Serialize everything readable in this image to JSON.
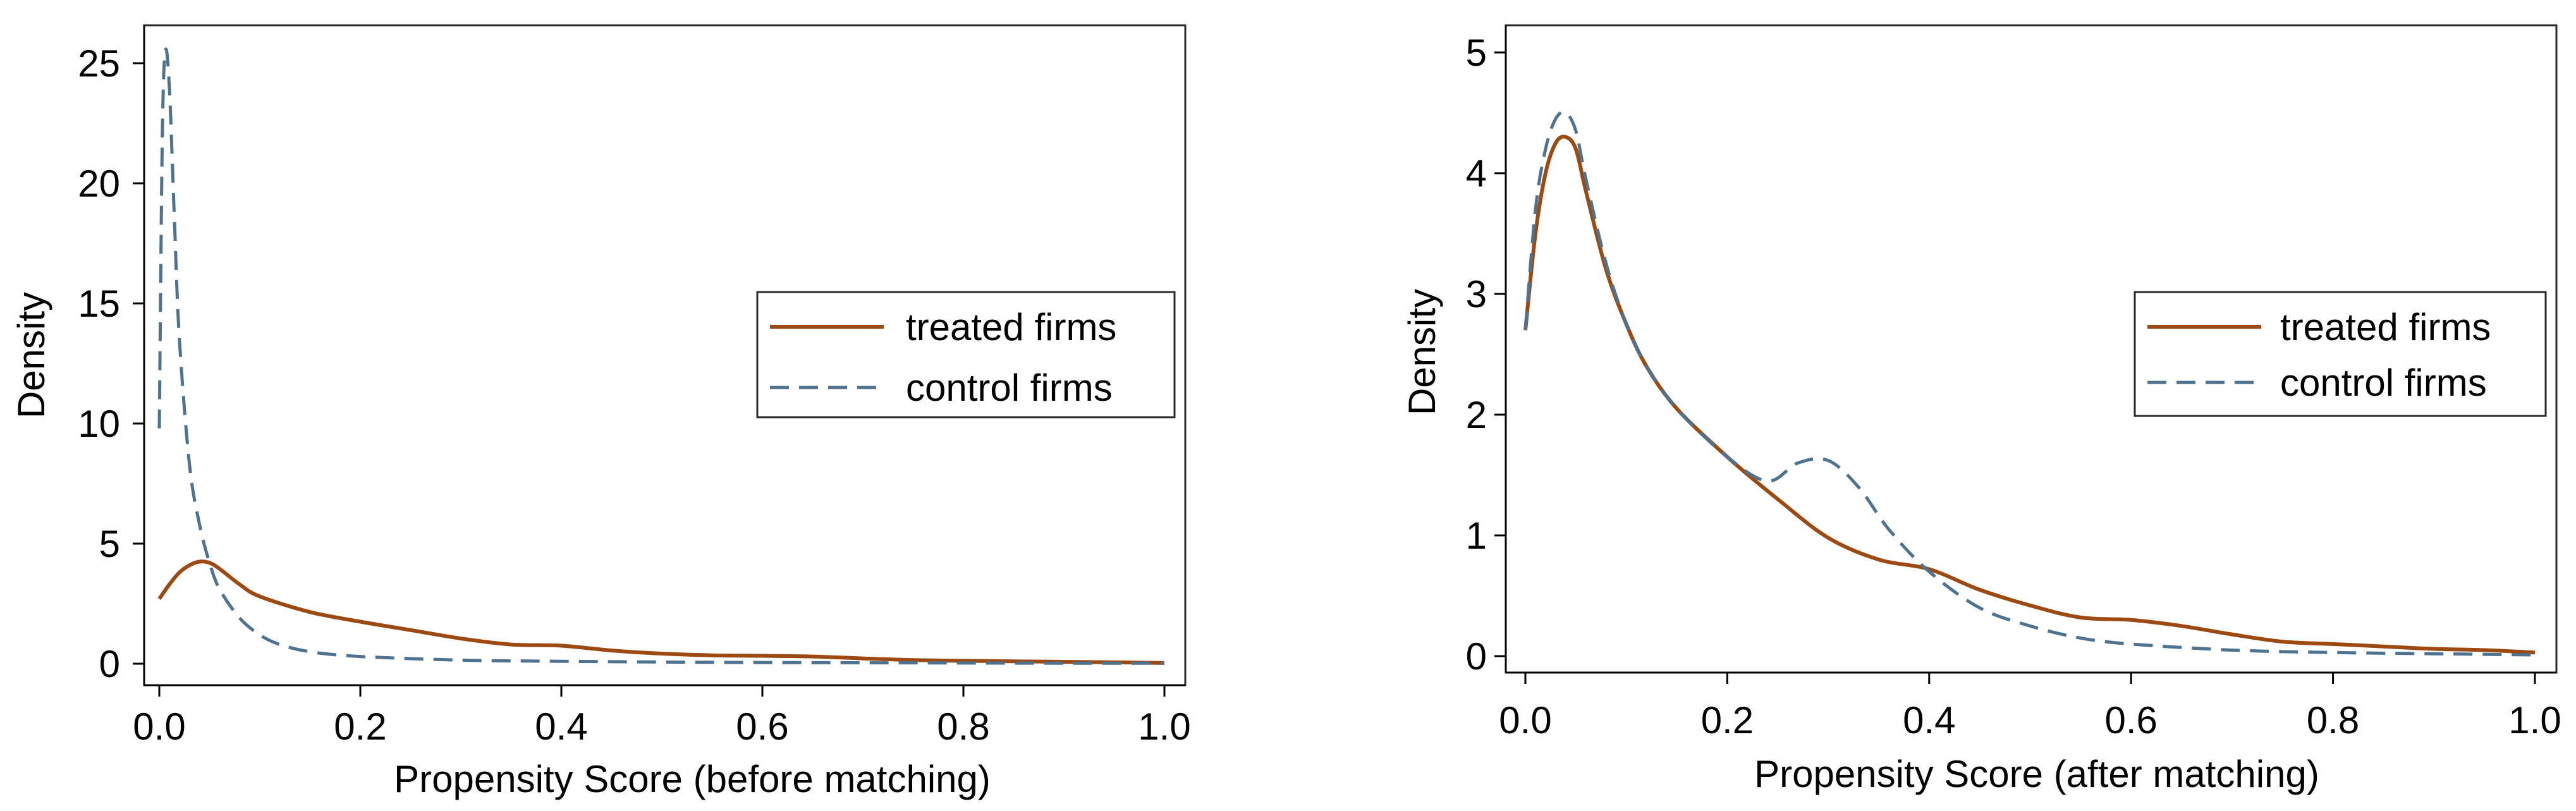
{
  "colors": {
    "treated": "#9c4a11",
    "control": "#4d7391",
    "frame": "#2b2b2b",
    "axis": "#000000"
  },
  "chart_data": [
    {
      "type": "line",
      "title": "",
      "xlabel": "Propensity Score (before matching)",
      "ylabel": "Density",
      "xlim": [
        0,
        1
      ],
      "ylim": [
        0,
        26
      ],
      "xticks": [
        0,
        0.2,
        0.4,
        0.6,
        0.8,
        1
      ],
      "xtick_labels": [
        "0.0",
        "0.2",
        "0.4",
        "0.6",
        "0.8",
        "1.0"
      ],
      "yticks": [
        0,
        5,
        10,
        15,
        20,
        25
      ],
      "ytick_labels": [
        "0",
        "5",
        "10",
        "15",
        "20",
        "25"
      ],
      "grid": false,
      "legend": {
        "position": "right",
        "entries": [
          "treated firms",
          "control firms"
        ]
      },
      "series": [
        {
          "name": "treated firms",
          "style": "solid",
          "x": [
            0,
            0.01,
            0.02,
            0.03,
            0.04,
            0.05,
            0.06,
            0.08,
            0.1,
            0.15,
            0.2,
            0.25,
            0.3,
            0.35,
            0.4,
            0.45,
            0.5,
            0.55,
            0.6,
            0.65,
            0.7,
            0.75,
            0.8,
            0.85,
            0.9,
            0.95,
            1.0
          ],
          "y": [
            2.7,
            3.3,
            3.8,
            4.1,
            4.25,
            4.2,
            3.95,
            3.3,
            2.8,
            2.15,
            1.75,
            1.4,
            1.05,
            0.8,
            0.75,
            0.55,
            0.42,
            0.35,
            0.33,
            0.3,
            0.22,
            0.15,
            0.12,
            0.1,
            0.08,
            0.06,
            0.03
          ]
        },
        {
          "name": "control firms",
          "style": "dashed",
          "x": [
            0,
            0.003,
            0.006,
            0.01,
            0.015,
            0.02,
            0.03,
            0.04,
            0.05,
            0.06,
            0.08,
            0.1,
            0.12,
            0.15,
            0.2,
            0.3,
            0.4,
            0.5,
            0.6,
            0.7,
            0.8,
            0.9,
            1.0
          ],
          "y": [
            9.8,
            22.0,
            25.5,
            24.0,
            18.5,
            13.5,
            8.3,
            5.8,
            4.2,
            3.1,
            1.9,
            1.2,
            0.8,
            0.5,
            0.3,
            0.15,
            0.1,
            0.07,
            0.05,
            0.04,
            0.03,
            0.02,
            0.02
          ]
        }
      ]
    },
    {
      "type": "line",
      "title": "",
      "xlabel": "Propensity Score (after matching)",
      "ylabel": "Density",
      "xlim": [
        0,
        1
      ],
      "ylim": [
        0,
        5.1
      ],
      "xticks": [
        0,
        0.2,
        0.4,
        0.6,
        0.8,
        1
      ],
      "xtick_labels": [
        "0.0",
        "0.2",
        "0.4",
        "0.6",
        "0.8",
        "1.0"
      ],
      "yticks": [
        0,
        1,
        2,
        3,
        4,
        5
      ],
      "ytick_labels": [
        "0",
        "1",
        "2",
        "3",
        "4",
        "5"
      ],
      "grid": false,
      "legend": {
        "position": "right",
        "entries": [
          "treated firms",
          "control firms"
        ]
      },
      "series": [
        {
          "name": "treated firms",
          "style": "solid",
          "x": [
            0,
            0.01,
            0.02,
            0.03,
            0.04,
            0.05,
            0.06,
            0.08,
            0.1,
            0.12,
            0.15,
            0.2,
            0.25,
            0.3,
            0.35,
            0.4,
            0.45,
            0.5,
            0.55,
            0.6,
            0.65,
            0.7,
            0.75,
            0.8,
            0.85,
            0.9,
            0.95,
            1.0
          ],
          "y": [
            2.7,
            3.5,
            4.0,
            4.25,
            4.3,
            4.2,
            3.85,
            3.2,
            2.75,
            2.4,
            2.05,
            1.65,
            1.3,
            0.98,
            0.8,
            0.72,
            0.55,
            0.42,
            0.32,
            0.3,
            0.25,
            0.18,
            0.12,
            0.1,
            0.08,
            0.06,
            0.05,
            0.03
          ]
        },
        {
          "name": "control firms",
          "style": "dashed",
          "x": [
            0,
            0.01,
            0.02,
            0.03,
            0.04,
            0.05,
            0.06,
            0.08,
            0.1,
            0.12,
            0.15,
            0.2,
            0.24,
            0.27,
            0.3,
            0.33,
            0.36,
            0.4,
            0.45,
            0.5,
            0.55,
            0.6,
            0.7,
            0.8,
            0.9,
            1.0
          ],
          "y": [
            2.7,
            3.7,
            4.2,
            4.45,
            4.5,
            4.35,
            3.95,
            3.25,
            2.75,
            2.4,
            2.05,
            1.65,
            1.45,
            1.6,
            1.62,
            1.4,
            1.05,
            0.7,
            0.4,
            0.25,
            0.15,
            0.1,
            0.05,
            0.03,
            0.02,
            0.01
          ]
        }
      ]
    }
  ]
}
